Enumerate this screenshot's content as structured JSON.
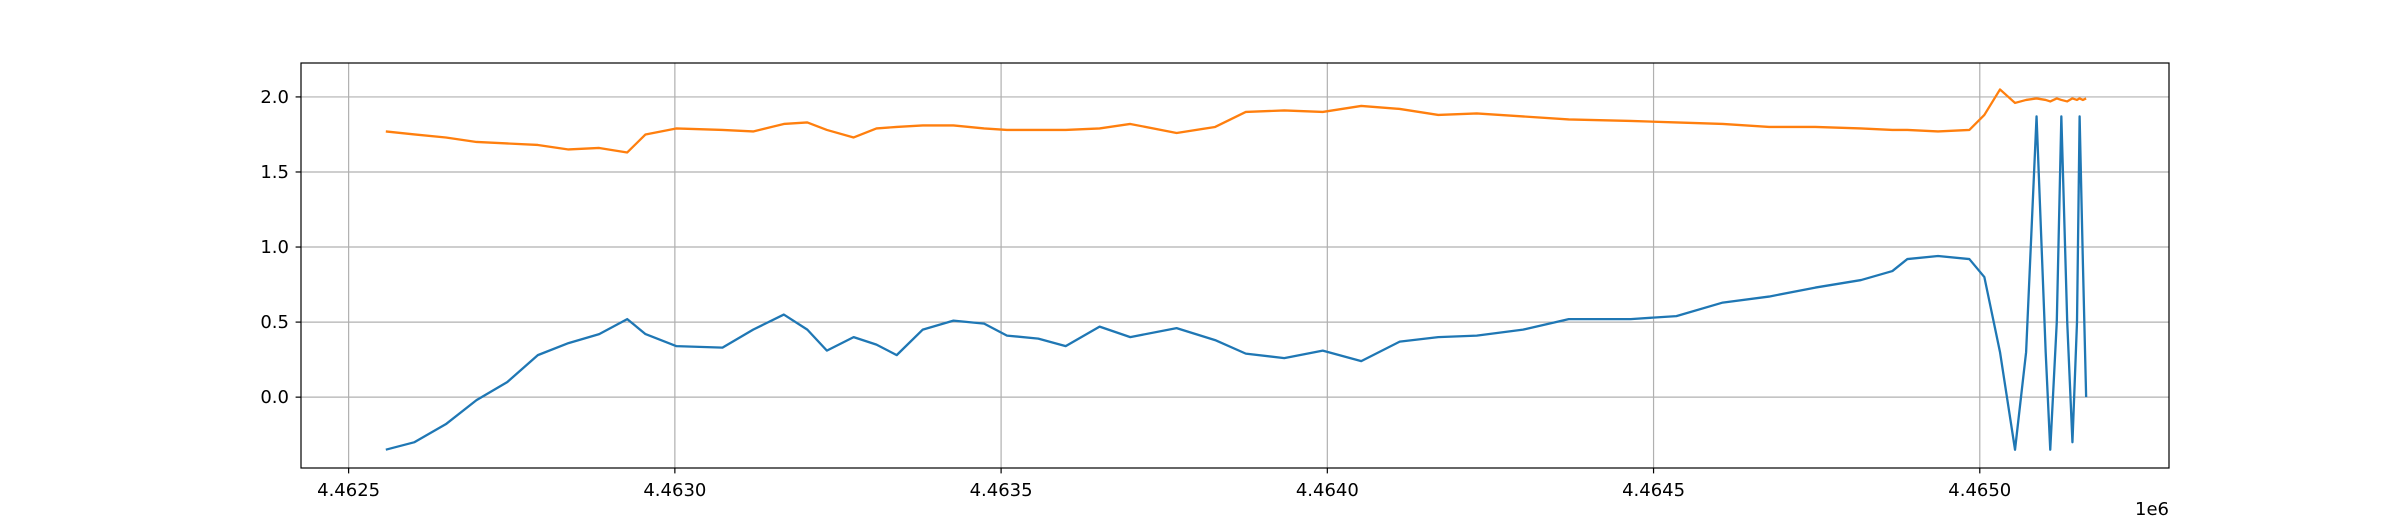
{
  "chart_data": {
    "type": "line",
    "x": [
      4462557,
      4462601,
      4462649,
      4462696,
      4462743,
      4462790,
      4462837,
      4462884,
      4462927,
      4462955,
      4463002,
      4463073,
      4463120,
      4463167,
      4463203,
      4463233,
      4463274,
      4463309,
      4463340,
      4463380,
      4463427,
      4463474,
      4463509,
      4463557,
      4463599,
      4463651,
      4463698,
      4463769,
      4463828,
      4463875,
      4463934,
      4463993,
      4464052,
      4464111,
      4464170,
      4464229,
      4464300,
      4464370,
      4464465,
      4464535,
      4464606,
      4464677,
      4464748,
      4464818,
      4464866,
      4464889,
      4464936,
      4464984,
      4465007,
      4465031,
      4465054,
      4465071,
      4465087,
      4465101,
      4465108,
      4465118,
      4465125,
      4465134,
      4465142,
      4465149,
      4465153,
      4465158,
      4465163
    ],
    "series": [
      {
        "color": "#1f77b4",
        "values": [
          -0.35,
          -0.3,
          -0.18,
          -0.02,
          0.1,
          0.28,
          0.36,
          0.42,
          0.52,
          0.42,
          0.34,
          0.33,
          0.45,
          0.55,
          0.45,
          0.31,
          0.4,
          0.35,
          0.28,
          0.45,
          0.51,
          0.49,
          0.41,
          0.39,
          0.34,
          0.47,
          0.4,
          0.46,
          0.38,
          0.29,
          0.26,
          0.31,
          0.24,
          0.37,
          0.4,
          0.41,
          0.45,
          0.52,
          0.52,
          0.54,
          0.63,
          0.67,
          0.73,
          0.78,
          0.84,
          0.92,
          0.94,
          0.92,
          0.8,
          0.3,
          -0.35,
          0.3,
          1.87,
          0.3,
          -0.35,
          0.5,
          1.87,
          0.5,
          -0.3,
          0.5,
          1.87,
          0.9,
          0.0
        ]
      },
      {
        "color": "#ff7f0e",
        "values": [
          1.77,
          1.75,
          1.73,
          1.7,
          1.69,
          1.68,
          1.65,
          1.66,
          1.63,
          1.75,
          1.79,
          1.78,
          1.77,
          1.82,
          1.83,
          1.78,
          1.73,
          1.79,
          1.8,
          1.81,
          1.81,
          1.79,
          1.78,
          1.78,
          1.78,
          1.79,
          1.82,
          1.76,
          1.8,
          1.9,
          1.91,
          1.9,
          1.94,
          1.92,
          1.88,
          1.89,
          1.87,
          1.85,
          1.84,
          1.83,
          1.82,
          1.8,
          1.8,
          1.79,
          1.78,
          1.78,
          1.77,
          1.78,
          1.88,
          2.05,
          1.96,
          1.98,
          1.99,
          1.98,
          1.97,
          1.99,
          1.98,
          1.97,
          1.99,
          1.98,
          1.99,
          1.98,
          1.99
        ]
      }
    ],
    "xlim": [
      4462427,
      4465290
    ],
    "xticks": [
      {
        "value": 4462500,
        "label": "4.4625"
      },
      {
        "value": 4463000,
        "label": "4.4630"
      },
      {
        "value": 4463500,
        "label": "4.4635"
      },
      {
        "value": 4464000,
        "label": "4.4640"
      },
      {
        "value": 4464500,
        "label": "4.4645"
      },
      {
        "value": 4465000,
        "label": "4.4650"
      }
    ],
    "x_offset_label": "1e6",
    "ylim": [
      -0.472,
      2.226
    ],
    "yticks": [
      {
        "value": 0,
        "label": "0.0"
      },
      0.5,
      {
        "value": 1,
        "label": "1.0"
      },
      1.5,
      {
        "value": 2,
        "label": "2.0"
      }
    ],
    "grid": true
  }
}
